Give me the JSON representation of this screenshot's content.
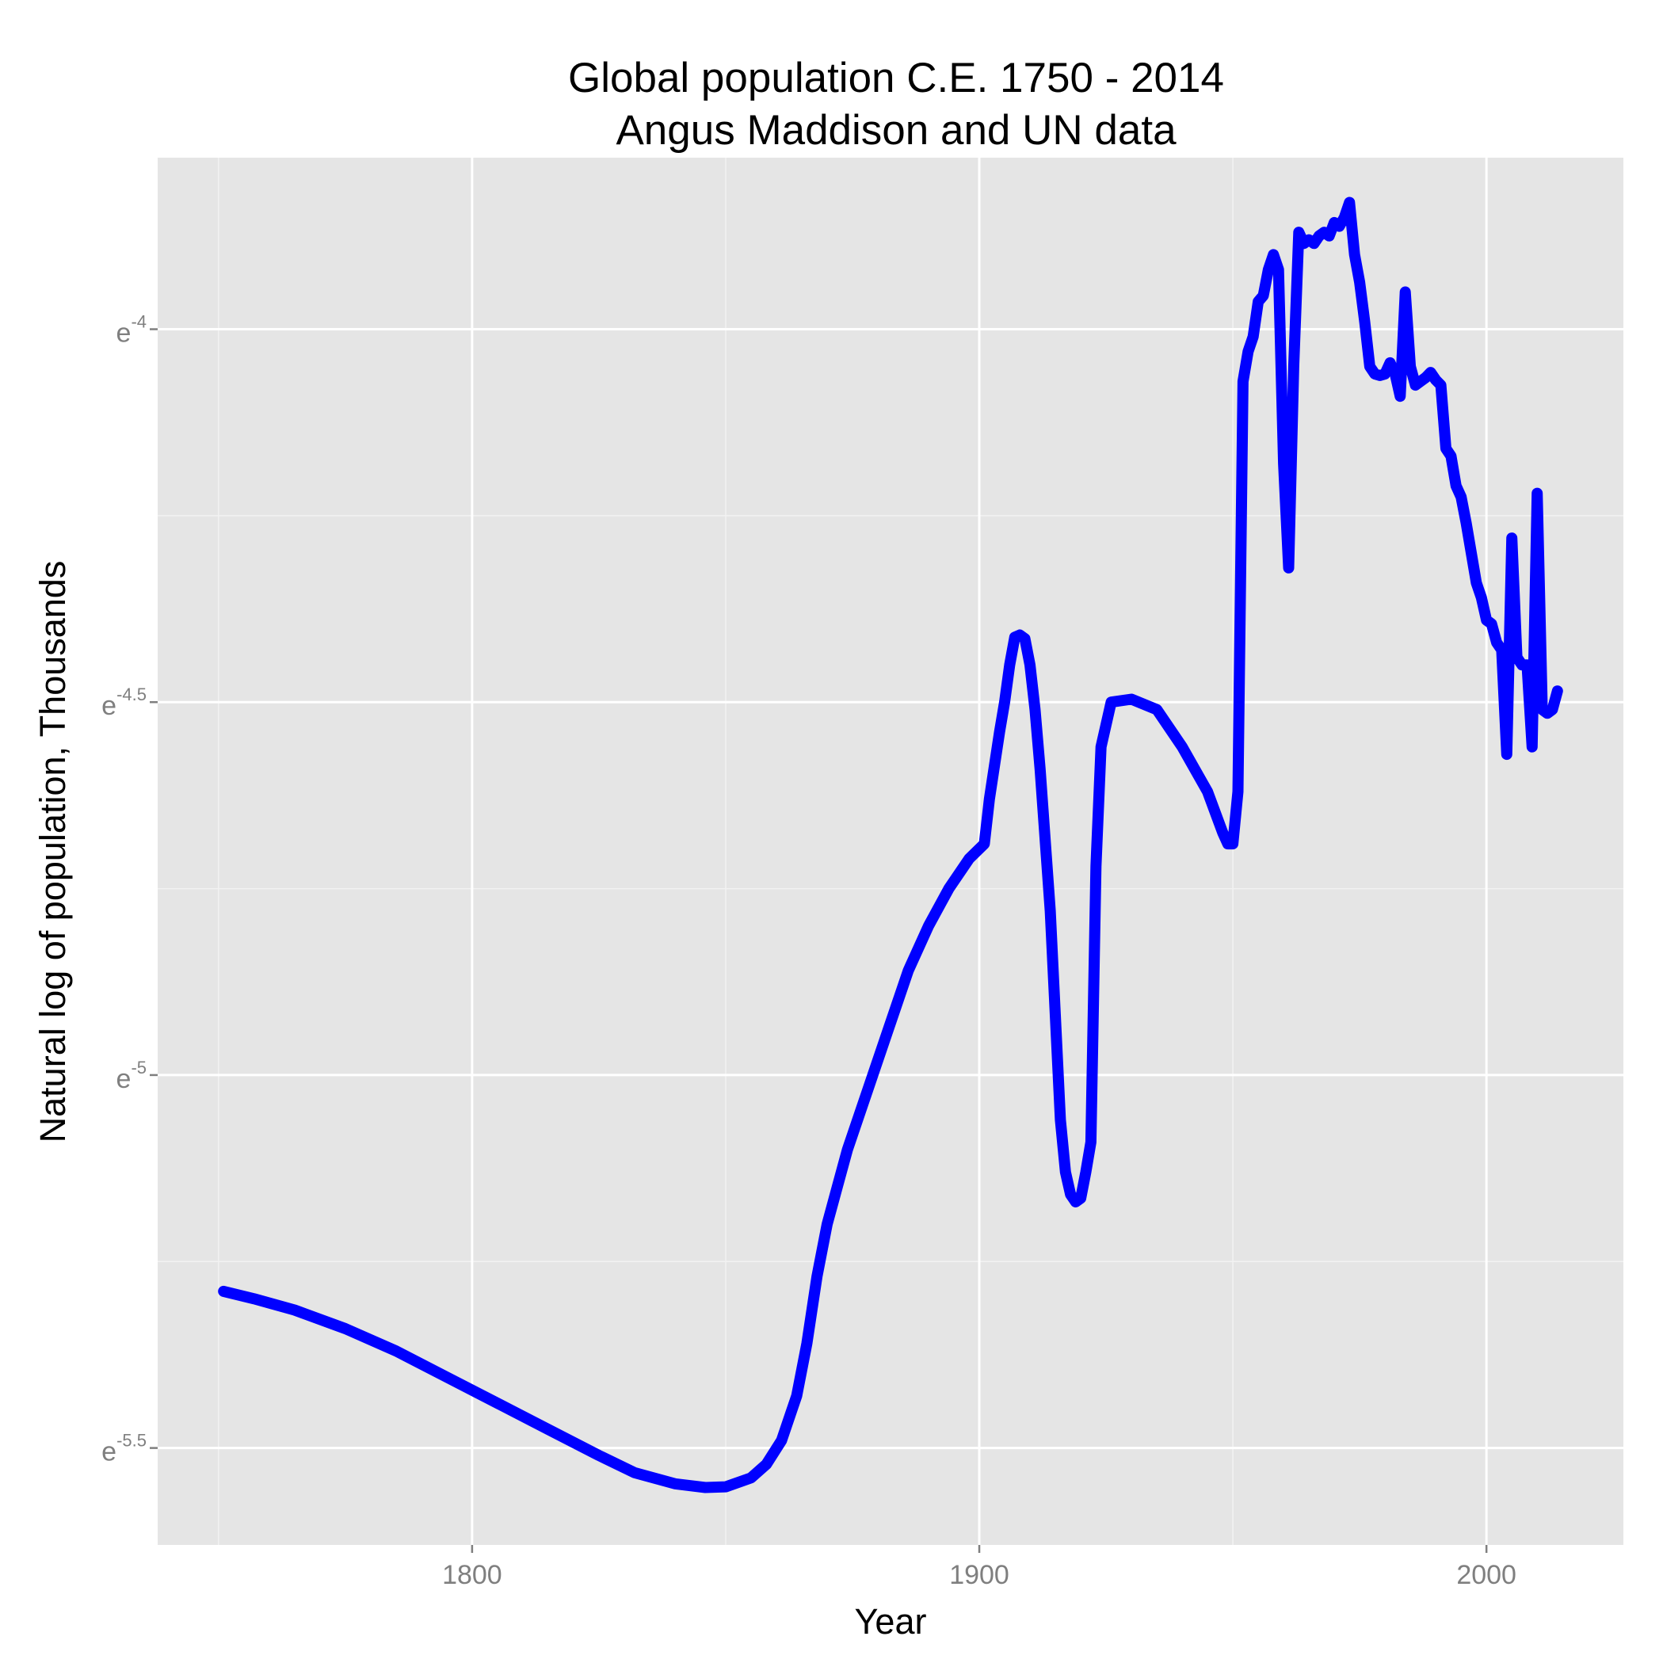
{
  "chart_data": {
    "type": "line",
    "title": [
      "Global population C.E. 1750 - 2014",
      "Angus Maddison and UN data"
    ],
    "xlabel": "Year",
    "ylabel": "Natural log of population, Thousands",
    "xlim": [
      1738,
      2027
    ],
    "ylim": [
      -5.63,
      -3.77
    ],
    "x_ticks": [
      {
        "value": 1800,
        "label": "1800"
      },
      {
        "value": 1900,
        "label": "1900"
      },
      {
        "value": 2000,
        "label": "2000"
      }
    ],
    "x_minor": [
      1750,
      1850,
      1950
    ],
    "y_ticks": [
      {
        "value": -5.5,
        "base": "e",
        "exp": "-5.5"
      },
      {
        "value": -5.0,
        "base": "e",
        "exp": "-5"
      },
      {
        "value": -4.5,
        "base": "e",
        "exp": "-4.5"
      },
      {
        "value": -4.0,
        "base": "e",
        "exp": "-4"
      }
    ],
    "y_minor": [
      -5.25,
      -4.75,
      -4.25
    ],
    "grid": true,
    "colors": {
      "panel": "#e5e5e5",
      "grid_major": "#ffffff",
      "grid_minor": "#f2f2f2",
      "line": "#0000ff",
      "tick": "#7f7f7f"
    },
    "series": [
      {
        "name": "population",
        "x": [
          1751,
          1757,
          1765,
          1775,
          1785,
          1795,
          1805,
          1815,
          1825,
          1832,
          1840,
          1846,
          1850,
          1855,
          1858,
          1861,
          1864,
          1866,
          1868,
          1870,
          1872,
          1874,
          1878,
          1882,
          1886,
          1890,
          1894,
          1898,
          1901,
          1902,
          1904,
          1905,
          1906,
          1907,
          1908,
          1909,
          1910,
          1911,
          1912,
          1914,
          1915,
          1916,
          1917,
          1918,
          1919,
          1920,
          1921,
          1922,
          1923,
          1924,
          1926,
          1930,
          1935,
          1940,
          1945,
          1948,
          1949,
          1950,
          1951,
          1952,
          1953,
          1954,
          1955,
          1956,
          1957,
          1958,
          1959,
          1960,
          1961,
          1962,
          1963,
          1964,
          1965,
          1966,
          1967,
          1968,
          1969,
          1970,
          1971,
          1972,
          1973,
          1974,
          1975,
          1976,
          1977,
          1978,
          1979,
          1980,
          1981,
          1982,
          1983,
          1984,
          1985,
          1986,
          1987,
          1988,
          1989,
          1990,
          1991,
          1992,
          1993,
          1994,
          1995,
          1996,
          1997,
          1998,
          1999,
          2000,
          2001,
          2002,
          2003,
          2004,
          2005,
          2006,
          2007,
          2008,
          2009,
          2010,
          2011,
          2012,
          2013,
          2014
        ],
        "y": [
          -5.29,
          -5.3,
          -5.315,
          -5.34,
          -5.37,
          -5.405,
          -5.44,
          -5.475,
          -5.51,
          -5.533,
          -5.548,
          -5.553,
          -5.552,
          -5.54,
          -5.522,
          -5.49,
          -5.43,
          -5.36,
          -5.27,
          -5.2,
          -5.15,
          -5.1,
          -5.02,
          -4.94,
          -4.86,
          -4.8,
          -4.75,
          -4.71,
          -4.69,
          -4.63,
          -4.54,
          -4.5,
          -4.45,
          -4.413,
          -4.41,
          -4.415,
          -4.45,
          -4.51,
          -4.59,
          -4.78,
          -4.92,
          -5.06,
          -5.13,
          -5.16,
          -5.17,
          -5.165,
          -5.13,
          -5.09,
          -4.72,
          -4.56,
          -4.5,
          -4.496,
          -4.51,
          -4.56,
          -4.62,
          -4.675,
          -4.69,
          -4.69,
          -4.62,
          -4.07,
          -4.03,
          -4.01,
          -3.963,
          -3.955,
          -3.92,
          -3.9,
          -3.92,
          -4.18,
          -4.32,
          -4.05,
          -3.87,
          -3.885,
          -3.88,
          -3.885,
          -3.875,
          -3.87,
          -3.875,
          -3.857,
          -3.862,
          -3.85,
          -3.83,
          -3.9,
          -3.937,
          -3.99,
          -4.05,
          -4.06,
          -4.062,
          -4.06,
          -4.045,
          -4.06,
          -4.09,
          -3.95,
          -4.05,
          -4.075,
          -4.07,
          -4.065,
          -4.058,
          -4.068,
          -4.075,
          -4.16,
          -4.17,
          -4.21,
          -4.225,
          -4.26,
          -4.3,
          -4.34,
          -4.36,
          -4.39,
          -4.395,
          -4.42,
          -4.43,
          -4.57,
          -4.28,
          -4.44,
          -4.45,
          -4.45,
          -4.56,
          -4.22,
          -4.51,
          -4.515,
          -4.51,
          -4.485
        ]
      }
    ]
  }
}
